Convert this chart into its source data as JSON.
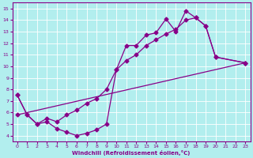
{
  "xlabel": "Windchill (Refroidissement éolien,°C)",
  "xlim": [
    -0.5,
    23.5
  ],
  "ylim": [
    3.5,
    15.5
  ],
  "xticks": [
    0,
    1,
    2,
    3,
    4,
    5,
    6,
    7,
    8,
    9,
    10,
    11,
    12,
    13,
    14,
    15,
    16,
    17,
    18,
    19,
    20,
    21,
    22,
    23
  ],
  "yticks": [
    4,
    5,
    6,
    7,
    8,
    9,
    10,
    11,
    12,
    13,
    14,
    15
  ],
  "bg_color": "#b2eeee",
  "line_color": "#880088",
  "line1_x": [
    0,
    1,
    2,
    3,
    4,
    5,
    6,
    7,
    8,
    9,
    10,
    11,
    12,
    13,
    14,
    15,
    16,
    17,
    18,
    19,
    20,
    23
  ],
  "line1_y": [
    7.5,
    5.8,
    5.0,
    5.2,
    4.6,
    4.3,
    4.0,
    4.2,
    4.5,
    5.0,
    9.7,
    11.8,
    11.8,
    12.7,
    12.9,
    14.1,
    13.0,
    14.8,
    14.2,
    13.5,
    10.8,
    10.3
  ],
  "line2_x": [
    0,
    1,
    2,
    3,
    4,
    5,
    6,
    7,
    8,
    9,
    10,
    11,
    12,
    13,
    14,
    15,
    16,
    17,
    18,
    19,
    20,
    23
  ],
  "line2_y": [
    7.5,
    5.8,
    5.0,
    5.5,
    5.2,
    5.8,
    6.2,
    6.8,
    7.2,
    8.0,
    9.7,
    10.5,
    11.0,
    11.8,
    12.3,
    12.8,
    13.2,
    14.0,
    14.2,
    13.5,
    10.8,
    10.3
  ],
  "line3_x": [
    0,
    23
  ],
  "line3_y": [
    5.8,
    10.3
  ],
  "grid_color": "#c8e8e8"
}
